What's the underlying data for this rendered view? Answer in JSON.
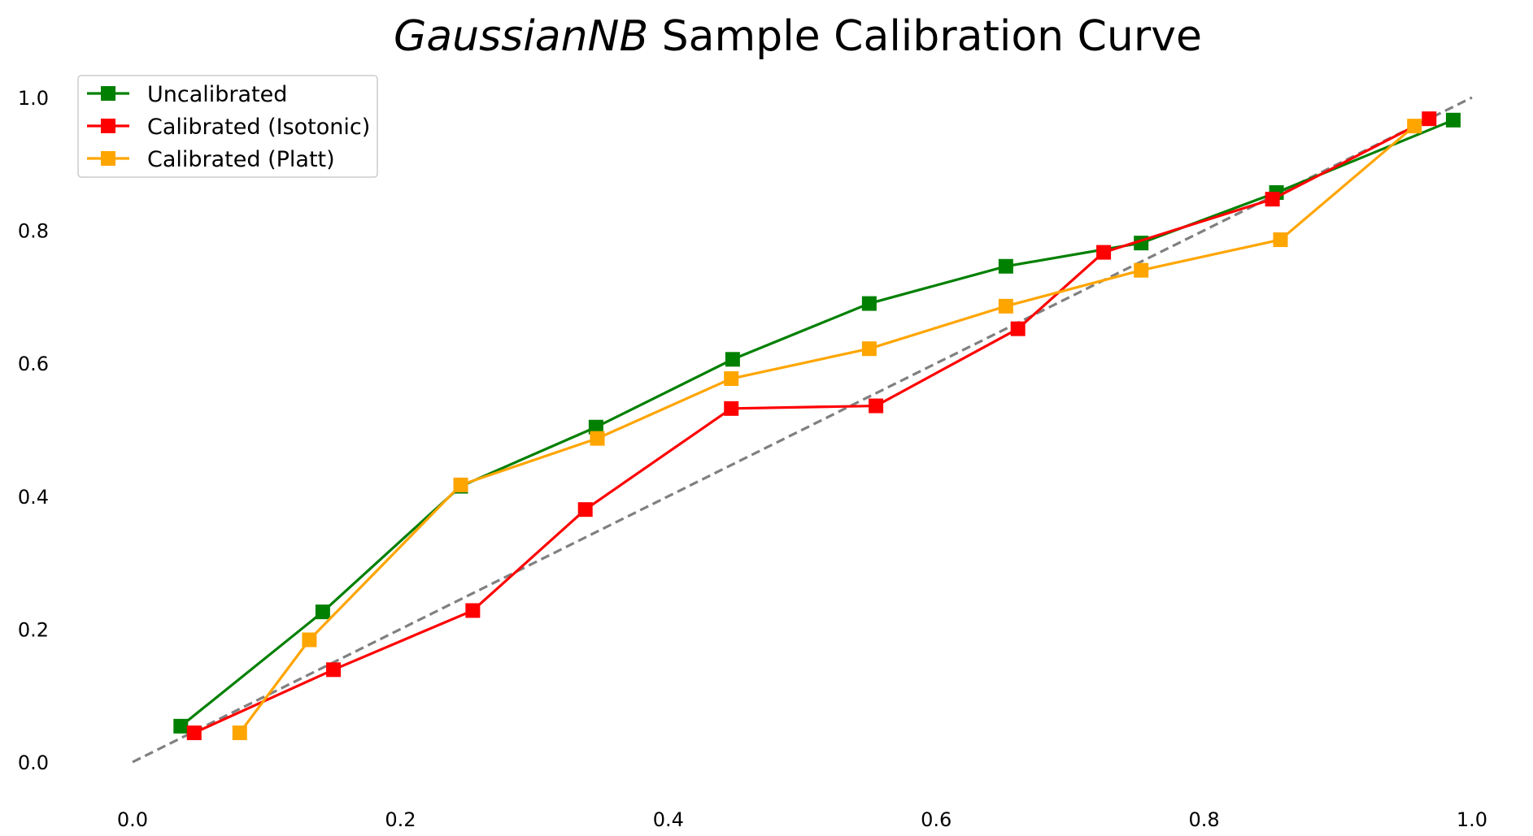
{
  "chart_data": {
    "type": "line",
    "title_italic": "GaussianNB",
    "title_rest": " Sample Calibration Curve",
    "xlabel": "",
    "ylabel": "",
    "xlim": [
      0,
      1
    ],
    "ylim": [
      0,
      1
    ],
    "x_ticks": [
      "0.0",
      "0.2",
      "0.4",
      "0.6",
      "0.8",
      "1.0"
    ],
    "y_ticks": [
      "0.0",
      "0.2",
      "0.4",
      "0.6",
      "0.8",
      "1.0"
    ],
    "grid": false,
    "legend_position": "top-left",
    "reference_line": {
      "x": [
        0,
        1
      ],
      "y": [
        0,
        1
      ],
      "color": "#808080",
      "style": "dashed"
    },
    "series": [
      {
        "name": "Uncalibrated",
        "color": "#008000",
        "x": [
          0.036,
          0.142,
          0.245,
          0.346,
          0.448,
          0.55,
          0.652,
          0.753,
          0.854,
          0.986
        ],
        "y": [
          0.054,
          0.226,
          0.415,
          0.504,
          0.606,
          0.69,
          0.746,
          0.781,
          0.857,
          0.966
        ]
      },
      {
        "name": "Calibrated (Isotonic)",
        "color": "#ff0000",
        "x": [
          0.046,
          0.15,
          0.254,
          0.338,
          0.447,
          0.555,
          0.661,
          0.725,
          0.851,
          0.968
        ],
        "y": [
          0.044,
          0.139,
          0.228,
          0.38,
          0.532,
          0.536,
          0.652,
          0.767,
          0.847,
          0.968
        ]
      },
      {
        "name": "Calibrated (Platt)",
        "color": "#ffa500",
        "x": [
          0.08,
          0.132,
          0.245,
          0.347,
          0.447,
          0.55,
          0.652,
          0.753,
          0.857,
          0.957
        ],
        "y": [
          0.044,
          0.184,
          0.417,
          0.487,
          0.577,
          0.622,
          0.686,
          0.74,
          0.786,
          0.957
        ]
      }
    ]
  }
}
